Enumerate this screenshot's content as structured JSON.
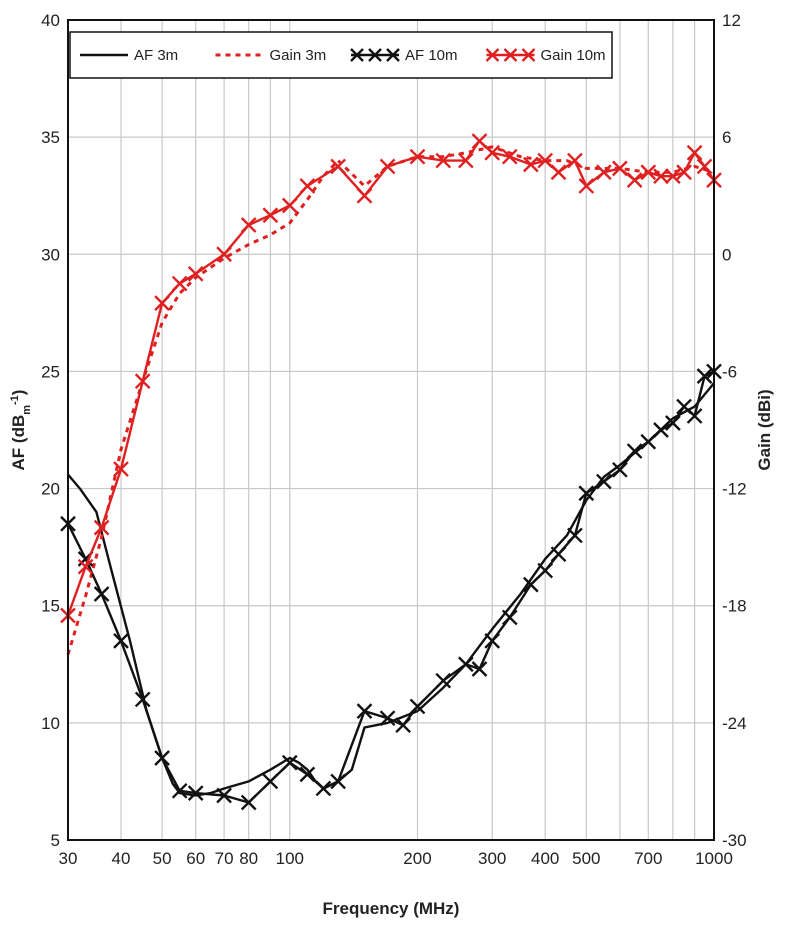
{
  "chart_data": {
    "type": "line",
    "title": "",
    "xlabel": "Frequency (MHz)",
    "ylabel_left": "AF (dB",
    "ylabel_left_sub": "m",
    "ylabel_left_sup": "-1",
    "ylabel_left_close": ")",
    "ylabel_right": "Gain (dBi)",
    "x_scale": "log",
    "xlim": [
      30,
      1000
    ],
    "ylim_left": [
      5,
      40
    ],
    "ylim_right": [
      -30,
      12
    ],
    "grid": true,
    "legend_position": "top",
    "x_ticks": [
      {
        "value": 30,
        "label": "30"
      },
      {
        "value": 40,
        "label": "40"
      },
      {
        "value": 50,
        "label": "50"
      },
      {
        "value": 60,
        "label": "60"
      },
      {
        "value": 70,
        "label": "70"
      },
      {
        "value": 80,
        "label": "80"
      },
      {
        "value": 100,
        "label": "100"
      },
      {
        "value": 200,
        "label": "200"
      },
      {
        "value": 300,
        "label": "300"
      },
      {
        "value": 400,
        "label": "400"
      },
      {
        "value": 500,
        "label": "500"
      },
      {
        "value": 700,
        "label": "700"
      },
      {
        "value": 1000,
        "label": "1000"
      }
    ],
    "x_grid": [
      30,
      40,
      50,
      60,
      70,
      80,
      90,
      100,
      200,
      300,
      400,
      500,
      600,
      700,
      800,
      900,
      1000
    ],
    "y_ticks_left": [
      {
        "value": 5,
        "label": "5"
      },
      {
        "value": 10,
        "label": "10"
      },
      {
        "value": 15,
        "label": "15"
      },
      {
        "value": 20,
        "label": "20"
      },
      {
        "value": 25,
        "label": "25"
      },
      {
        "value": 30,
        "label": "30"
      },
      {
        "value": 35,
        "label": "35"
      },
      {
        "value": 40,
        "label": "40"
      }
    ],
    "y_ticks_right": [
      {
        "value": -30,
        "label": "-30"
      },
      {
        "value": -24,
        "label": "-24"
      },
      {
        "value": -18,
        "label": "-18"
      },
      {
        "value": -12,
        "label": "-12"
      },
      {
        "value": -6,
        "label": "-6"
      },
      {
        "value": 0,
        "label": "0"
      },
      {
        "value": 6,
        "label": "6"
      },
      {
        "value": 12,
        "label": "12"
      }
    ],
    "series": [
      {
        "name": "AF 3m",
        "axis": "left",
        "color": "#111111",
        "style": "solid",
        "marker": "none",
        "points": [
          [
            30,
            20.6
          ],
          [
            32,
            20.0
          ],
          [
            35,
            19.0
          ],
          [
            38,
            16.5
          ],
          [
            42,
            13.5
          ],
          [
            46,
            10.5
          ],
          [
            50,
            8.5
          ],
          [
            53,
            7.4
          ],
          [
            55,
            7.0
          ],
          [
            60,
            6.9
          ],
          [
            65,
            7.0
          ],
          [
            70,
            7.2
          ],
          [
            80,
            7.5
          ],
          [
            90,
            8.0
          ],
          [
            100,
            8.5
          ],
          [
            105,
            8.3
          ],
          [
            110,
            8.0
          ],
          [
            115,
            7.5
          ],
          [
            120,
            7.2
          ],
          [
            130,
            7.5
          ],
          [
            140,
            8.0
          ],
          [
            150,
            9.8
          ],
          [
            170,
            10.0
          ],
          [
            200,
            10.5
          ],
          [
            230,
            11.5
          ],
          [
            260,
            12.5
          ],
          [
            300,
            14.0
          ],
          [
            350,
            15.5
          ],
          [
            400,
            17.0
          ],
          [
            450,
            18.0
          ],
          [
            500,
            19.5
          ],
          [
            550,
            20.5
          ],
          [
            600,
            21.0
          ],
          [
            700,
            22.0
          ],
          [
            800,
            23.0
          ],
          [
            900,
            23.5
          ],
          [
            1000,
            24.5
          ]
        ]
      },
      {
        "name": "Gain 3m",
        "axis": "right",
        "color": "#e02020",
        "style": "dotted",
        "marker": "none",
        "points": [
          [
            30,
            -20.5
          ],
          [
            33,
            -17.5
          ],
          [
            36,
            -14.5
          ],
          [
            40,
            -10.0
          ],
          [
            45,
            -6.5
          ],
          [
            50,
            -3.5
          ],
          [
            55,
            -2.0
          ],
          [
            60,
            -1.2
          ],
          [
            70,
            -0.2
          ],
          [
            80,
            0.5
          ],
          [
            90,
            1.0
          ],
          [
            100,
            1.6
          ],
          [
            110,
            2.8
          ],
          [
            120,
            4.0
          ],
          [
            130,
            4.8
          ],
          [
            150,
            3.5
          ],
          [
            170,
            4.5
          ],
          [
            200,
            5.0
          ],
          [
            230,
            5.0
          ],
          [
            260,
            5.2
          ],
          [
            300,
            5.5
          ],
          [
            350,
            5.0
          ],
          [
            400,
            4.8
          ],
          [
            450,
            4.8
          ],
          [
            500,
            4.4
          ],
          [
            600,
            4.4
          ],
          [
            700,
            4.2
          ],
          [
            800,
            4.2
          ],
          [
            900,
            4.5
          ],
          [
            1000,
            4.2
          ]
        ]
      },
      {
        "name": "AF 10m",
        "axis": "left",
        "color": "#111111",
        "style": "solid",
        "marker": "x",
        "points": [
          [
            30,
            18.5
          ],
          [
            33,
            17.0
          ],
          [
            36,
            15.5
          ],
          [
            40,
            13.5
          ],
          [
            45,
            11.0
          ],
          [
            50,
            8.5
          ],
          [
            55,
            7.1
          ],
          [
            60,
            7.0
          ],
          [
            70,
            6.9
          ],
          [
            80,
            6.6
          ],
          [
            90,
            7.5
          ],
          [
            100,
            8.3
          ],
          [
            110,
            7.8
          ],
          [
            120,
            7.2
          ],
          [
            130,
            7.5
          ],
          [
            150,
            10.5
          ],
          [
            170,
            10.2
          ],
          [
            185,
            9.9
          ],
          [
            200,
            10.7
          ],
          [
            230,
            11.8
          ],
          [
            260,
            12.5
          ],
          [
            280,
            12.3
          ],
          [
            300,
            13.5
          ],
          [
            330,
            14.5
          ],
          [
            370,
            15.9
          ],
          [
            400,
            16.5
          ],
          [
            430,
            17.2
          ],
          [
            470,
            18.0
          ],
          [
            500,
            19.8
          ],
          [
            550,
            20.3
          ],
          [
            600,
            20.8
          ],
          [
            650,
            21.6
          ],
          [
            700,
            22.0
          ],
          [
            750,
            22.5
          ],
          [
            800,
            22.8
          ],
          [
            850,
            23.5
          ],
          [
            900,
            23.1
          ],
          [
            950,
            24.8
          ],
          [
            1000,
            25.0
          ]
        ]
      },
      {
        "name": "Gain 10m",
        "axis": "right",
        "color": "#e02020",
        "style": "solid",
        "marker": "x",
        "points": [
          [
            30,
            -18.5
          ],
          [
            33,
            -16.0
          ],
          [
            36,
            -14.0
          ],
          [
            40,
            -11.0
          ],
          [
            45,
            -6.5
          ],
          [
            50,
            -2.5
          ],
          [
            55,
            -1.5
          ],
          [
            60,
            -1.0
          ],
          [
            70,
            0.0
          ],
          [
            80,
            1.5
          ],
          [
            90,
            2.0
          ],
          [
            100,
            2.5
          ],
          [
            110,
            3.5
          ],
          [
            130,
            4.5
          ],
          [
            150,
            3.0
          ],
          [
            170,
            4.5
          ],
          [
            200,
            5.0
          ],
          [
            230,
            4.8
          ],
          [
            260,
            4.8
          ],
          [
            280,
            5.8
          ],
          [
            300,
            5.2
          ],
          [
            330,
            5.0
          ],
          [
            370,
            4.6
          ],
          [
            400,
            4.8
          ],
          [
            430,
            4.2
          ],
          [
            470,
            4.8
          ],
          [
            500,
            3.5
          ],
          [
            550,
            4.2
          ],
          [
            600,
            4.4
          ],
          [
            650,
            3.8
          ],
          [
            700,
            4.2
          ],
          [
            750,
            4.0
          ],
          [
            800,
            4.0
          ],
          [
            850,
            4.2
          ],
          [
            900,
            5.2
          ],
          [
            950,
            4.5
          ],
          [
            1000,
            3.8
          ]
        ]
      }
    ]
  }
}
